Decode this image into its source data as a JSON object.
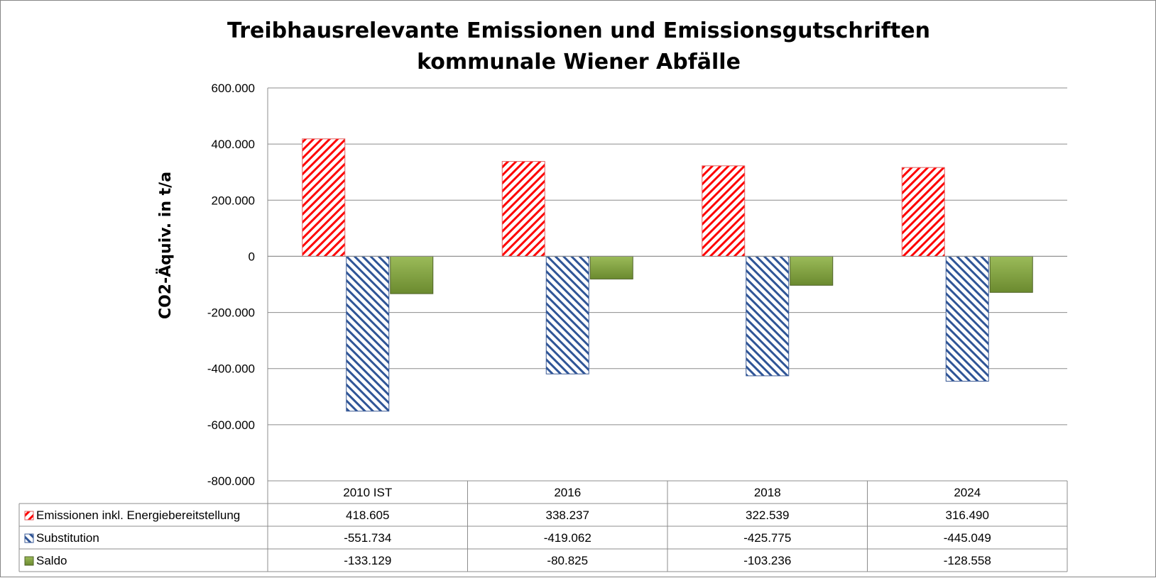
{
  "chart_data": {
    "type": "bar",
    "title_lines": [
      "Treibhausrelevante Emissionen und Emissionsgutschriften",
      "kommunale Wiener Abfälle"
    ],
    "ylabel": "CO2-Äquiv. in t/a",
    "ylim": [
      -800000,
      600000
    ],
    "y_ticks": [
      600000,
      400000,
      200000,
      0,
      -200000,
      -400000,
      -600000,
      -800000
    ],
    "y_tick_labels": [
      "600.000",
      "400.000",
      "200.000",
      "0",
      "-200.000",
      "-400.000",
      "-600.000",
      "-800.000"
    ],
    "categories": [
      "2010 IST",
      "2016",
      "2018",
      "2024"
    ],
    "series": [
      {
        "name": "Emissionen inkl. Energiebereitstellung",
        "values": [
          418605,
          338237,
          322539,
          316490
        ],
        "labels": [
          "418.605",
          "338.237",
          "322.539",
          "316.490"
        ],
        "color": "#ff0000",
        "pattern": "diagonal-down"
      },
      {
        "name": "Substitution",
        "values": [
          -551734,
          -419062,
          -425775,
          -445049
        ],
        "labels": [
          "-551.734",
          "-419.062",
          "-425.775",
          "-445.049"
        ],
        "color": "#2f5597",
        "pattern": "diagonal-up"
      },
      {
        "name": "Saldo",
        "values": [
          -133129,
          -80825,
          -103236,
          -128558
        ],
        "labels": [
          "-133.129",
          "-80.825",
          "-103.236",
          "-128.558"
        ],
        "color": "#77933c",
        "pattern": "solid"
      }
    ],
    "grid": true,
    "legend": "data-table"
  }
}
